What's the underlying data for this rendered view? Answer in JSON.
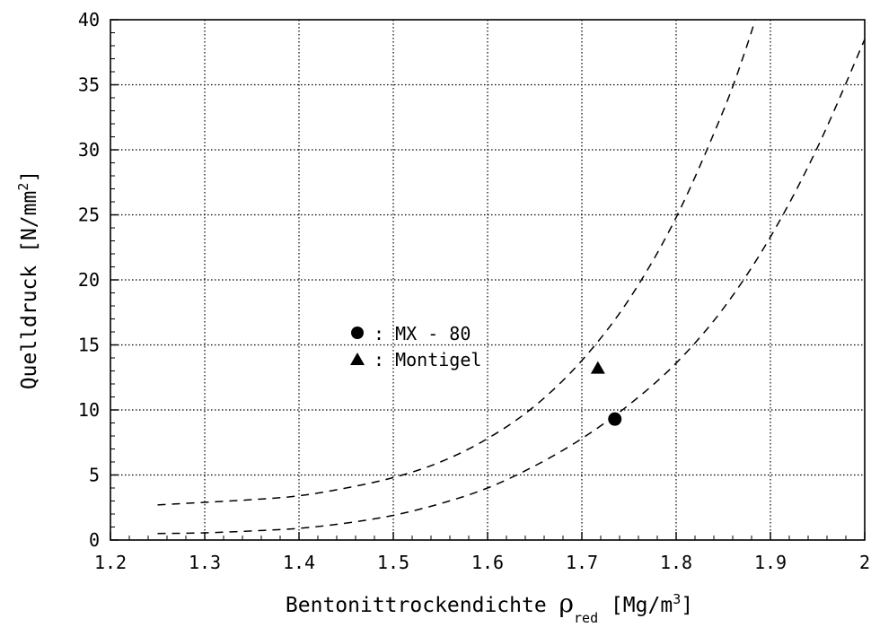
{
  "chart_data": {
    "type": "scatter",
    "xlabel": {
      "main": "Bentonittrockendichte ",
      "symbol": "ρ",
      "subscript": "red",
      "unit_open": " [Mg/m",
      "unit_sup": "3",
      "unit_close": "]"
    },
    "ylabel": {
      "main": "Quelldruck [N/mm",
      "sup": "2",
      "close": "]"
    },
    "xlim": [
      1.2,
      2.0
    ],
    "ylim": [
      0,
      40
    ],
    "x_ticks": [
      "1.2",
      "1.3",
      "1.4",
      "1.5",
      "1.6",
      "1.7",
      "1.8",
      "1.9",
      "2"
    ],
    "y_ticks": [
      "0",
      "5",
      "10",
      "15",
      "20",
      "25",
      "30",
      "35",
      "40"
    ],
    "grid": true,
    "curves": [
      {
        "style": "dashed",
        "x": [
          1.25,
          1.3,
          1.35,
          1.4,
          1.45,
          1.5,
          1.55,
          1.6,
          1.65,
          1.7,
          1.75,
          1.8,
          1.85,
          1.875,
          1.89
        ],
        "y": [
          2.7,
          2.9,
          3.1,
          3.4,
          4.0,
          4.8,
          6.0,
          7.8,
          10.3,
          13.8,
          18.5,
          24.8,
          33.0,
          38.0,
          41.5
        ]
      },
      {
        "style": "dashed",
        "x": [
          1.25,
          1.3,
          1.35,
          1.4,
          1.45,
          1.5,
          1.55,
          1.6,
          1.65,
          1.7,
          1.75,
          1.8,
          1.85,
          1.9,
          1.95,
          2.0
        ],
        "y": [
          0.5,
          0.55,
          0.7,
          0.9,
          1.3,
          1.9,
          2.8,
          4.0,
          5.7,
          7.8,
          10.4,
          13.6,
          17.8,
          23.3,
          30.2,
          38.5
        ]
      }
    ],
    "points": [
      {
        "series": "MX - 80",
        "marker": "circle",
        "x": 1.735,
        "y": 9.3
      },
      {
        "series": "Montigel",
        "marker": "triangle",
        "x": 1.717,
        "y": 13.2
      }
    ],
    "legend": {
      "position": "center-left",
      "entries": [
        {
          "marker": "circle",
          "label": ": MX - 80"
        },
        {
          "marker": "triangle",
          "label": ": Montigel"
        }
      ]
    }
  }
}
